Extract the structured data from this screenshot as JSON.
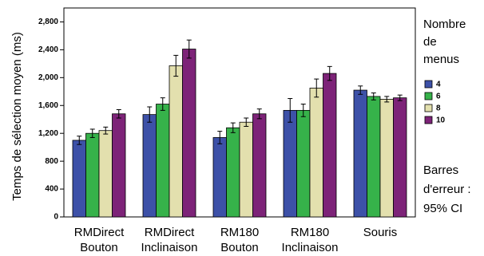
{
  "chart_data": {
    "type": "bar",
    "ylabel": "Temps de sélection moyen (ms)",
    "xlabel": "",
    "title": "",
    "ylim": [
      0,
      3000
    ],
    "yticks": [
      "0",
      "400",
      "800",
      "1,200",
      "1,600",
      "2,000",
      "2,400",
      "2,800"
    ],
    "ytick_values": [
      0,
      400,
      800,
      1200,
      1600,
      2000,
      2400,
      2800
    ],
    "categories": [
      [
        "RMDirect",
        "Bouton"
      ],
      [
        "RMDirect",
        "Inclinaison"
      ],
      [
        "RM180",
        "Bouton"
      ],
      [
        "RM180",
        "Inclinaison"
      ],
      [
        "Souris"
      ]
    ],
    "series": [
      {
        "name": "4",
        "color": "#3d51a8",
        "values": [
          1100,
          1470,
          1140,
          1530,
          1820
        ],
        "errors": [
          60,
          110,
          90,
          170,
          60
        ]
      },
      {
        "name": "6",
        "color": "#36b24a",
        "values": [
          1200,
          1620,
          1280,
          1530,
          1730
        ],
        "errors": [
          60,
          90,
          70,
          90,
          50
        ]
      },
      {
        "name": "8",
        "color": "#e3e0ae",
        "values": [
          1240,
          2170,
          1360,
          1850,
          1690
        ],
        "errors": [
          50,
          150,
          60,
          130,
          40
        ]
      },
      {
        "name": "10",
        "color": "#7d2378",
        "values": [
          1480,
          2410,
          1480,
          2060,
          1710
        ],
        "errors": [
          60,
          130,
          70,
          100,
          40
        ]
      }
    ],
    "legend": {
      "title_lines": [
        "Nombre",
        "de",
        "menus"
      ],
      "placement": "right"
    },
    "note_lines": [
      "Barres",
      "d'erreur :",
      "95% CI"
    ]
  }
}
